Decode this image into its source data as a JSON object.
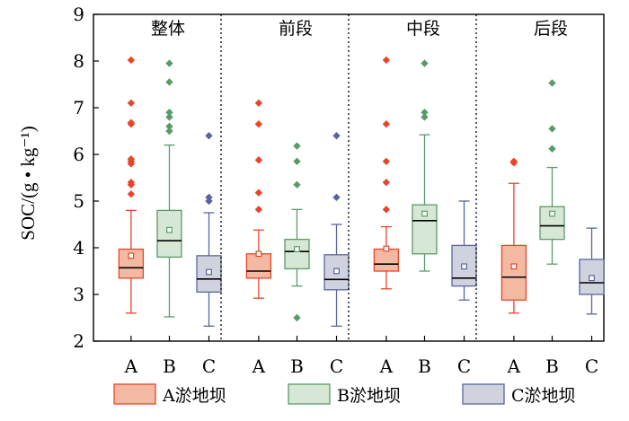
{
  "chart_data": {
    "type": "boxplot",
    "ylabel": "SOC/(g • kg⁻¹)",
    "ylim": [
      2,
      9
    ],
    "yticks": [
      "2",
      "3",
      "4",
      "5",
      "6",
      "7",
      "8",
      "9"
    ],
    "ytick_values": [
      2,
      3,
      4,
      5,
      6,
      7,
      8,
      9
    ],
    "categories": [
      "A",
      "B",
      "C"
    ],
    "legend": [
      {
        "key": "A",
        "label": "A淤地坝",
        "fill": "#f4b9a3",
        "stroke": "#e8452b"
      },
      {
        "key": "B",
        "label": "B淤地坝",
        "fill": "#d7e7d5",
        "stroke": "#5a9a69"
      },
      {
        "key": "C",
        "label": "C淤地坝",
        "fill": "#d0d2de",
        "stroke": "#5a659e"
      }
    ],
    "panels": [
      {
        "title": "整体",
        "boxes": [
          {
            "category": "A",
            "whisker_low": 2.6,
            "q1": 3.35,
            "median": 3.57,
            "q3": 3.97,
            "whisker_high": 4.8,
            "mean": 3.83,
            "outliers": [
              5.15,
              5.35,
              5.4,
              5.8,
              5.85,
              5.9,
              6.65,
              6.68,
              7.1,
              8.02
            ]
          },
          {
            "category": "B",
            "whisker_low": 2.52,
            "q1": 3.8,
            "median": 4.15,
            "q3": 4.8,
            "whisker_high": 6.2,
            "mean": 4.38,
            "outliers": [
              6.5,
              6.6,
              6.8,
              6.9,
              7.55,
              7.95
            ]
          },
          {
            "category": "C",
            "whisker_low": 2.32,
            "q1": 3.05,
            "median": 3.33,
            "q3": 3.83,
            "whisker_high": 4.75,
            "mean": 3.48,
            "outliers": [
              5.0,
              5.08,
              6.4
            ]
          }
        ]
      },
      {
        "title": "前段",
        "boxes": [
          {
            "category": "A",
            "whisker_low": 2.92,
            "q1": 3.35,
            "median": 3.5,
            "q3": 3.87,
            "whisker_high": 4.38,
            "mean": 3.87,
            "outliers": [
              4.82,
              5.18,
              5.88,
              6.65,
              7.1
            ]
          },
          {
            "category": "B",
            "whisker_low": 3.18,
            "q1": 3.55,
            "median": 3.92,
            "q3": 4.18,
            "whisker_high": 4.82,
            "mean": 3.97,
            "outliers": [
              2.5,
              5.35,
              5.85,
              6.18
            ]
          },
          {
            "category": "C",
            "whisker_low": 2.32,
            "q1": 3.1,
            "median": 3.32,
            "q3": 3.85,
            "whisker_high": 4.5,
            "mean": 3.5,
            "outliers": [
              5.08,
              6.4
            ]
          }
        ]
      },
      {
        "title": "中段",
        "boxes": [
          {
            "category": "A",
            "whisker_low": 3.12,
            "q1": 3.5,
            "median": 3.65,
            "q3": 3.97,
            "whisker_high": 4.45,
            "mean": 3.98,
            "outliers": [
              4.82,
              5.4,
              5.85,
              6.65,
              8.02
            ]
          },
          {
            "category": "B",
            "whisker_low": 3.5,
            "q1": 3.87,
            "median": 4.58,
            "q3": 4.92,
            "whisker_high": 6.42,
            "mean": 4.73,
            "outliers": [
              6.8,
              6.9,
              7.95
            ]
          },
          {
            "category": "C",
            "whisker_low": 2.88,
            "q1": 3.18,
            "median": 3.35,
            "q3": 4.05,
            "whisker_high": 5.0,
            "mean": 3.6,
            "outliers": []
          }
        ]
      },
      {
        "title": "后段",
        "boxes": [
          {
            "category": "A",
            "whisker_low": 2.6,
            "q1": 2.88,
            "median": 3.37,
            "q3": 4.05,
            "whisker_high": 5.38,
            "mean": 3.6,
            "outliers": [
              5.82,
              5.85
            ]
          },
          {
            "category": "B",
            "whisker_low": 3.65,
            "q1": 4.18,
            "median": 4.47,
            "q3": 4.88,
            "whisker_high": 5.72,
            "mean": 4.73,
            "outliers": [
              6.12,
              6.55,
              7.53
            ]
          },
          {
            "category": "C",
            "whisker_low": 2.58,
            "q1": 3.0,
            "median": 3.25,
            "q3": 3.75,
            "whisker_high": 4.42,
            "mean": 3.35,
            "outliers": []
          }
        ]
      }
    ]
  }
}
